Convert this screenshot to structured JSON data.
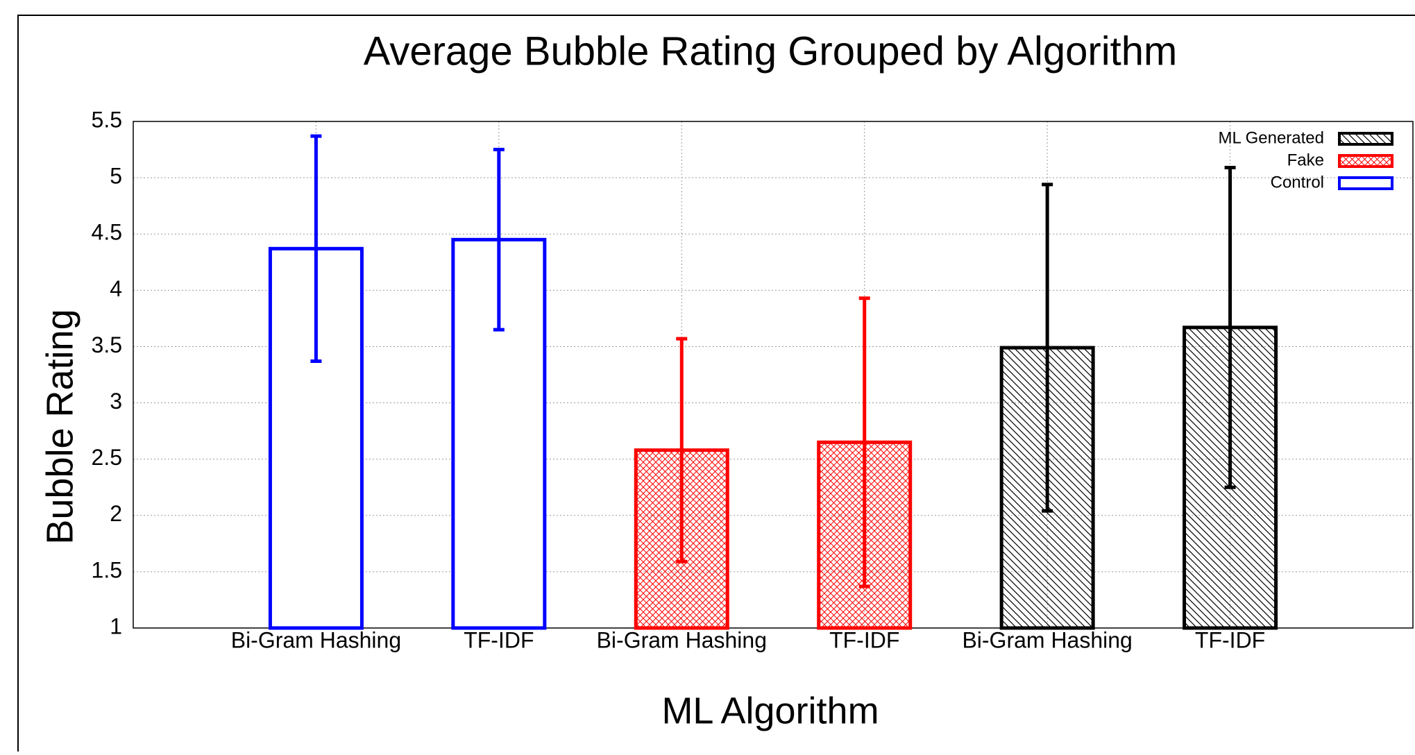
{
  "chart_data": {
    "type": "bar",
    "title": "Average Bubble Rating Grouped by Algorithm",
    "x_label": "ML Algorithm",
    "y_label": "Bubble Rating",
    "categories": [
      "Bi-Gram Hashing",
      "TF-IDF",
      "Bi-Gram Hashing",
      "TF-IDF",
      "Bi-Gram Hashing",
      "TF-IDF"
    ],
    "series": [
      {
        "name": "ML Generated",
        "color": "#000000",
        "hatch": "diagonal",
        "values": [
          null,
          null,
          null,
          null,
          3.49,
          3.67
        ],
        "errors": [
          null,
          null,
          null,
          null,
          1.45,
          1.42
        ]
      },
      {
        "name": "Fake",
        "color": "#ff0000",
        "hatch": "cross",
        "values": [
          null,
          null,
          2.58,
          2.65,
          null,
          null
        ],
        "errors": [
          null,
          null,
          0.99,
          1.28,
          null,
          null
        ]
      },
      {
        "name": "Control",
        "color": "#0000ff",
        "hatch": "none",
        "values": [
          4.37,
          4.45,
          null,
          null,
          null,
          null
        ],
        "errors": [
          1.0,
          0.8,
          null,
          null,
          null,
          null
        ]
      }
    ],
    "ylim": [
      1,
      5.5
    ],
    "yticks": [
      1,
      1.5,
      2,
      2.5,
      3,
      3.5,
      4,
      4.5,
      5,
      5.5
    ],
    "grid": true,
    "legend": "upper right"
  }
}
